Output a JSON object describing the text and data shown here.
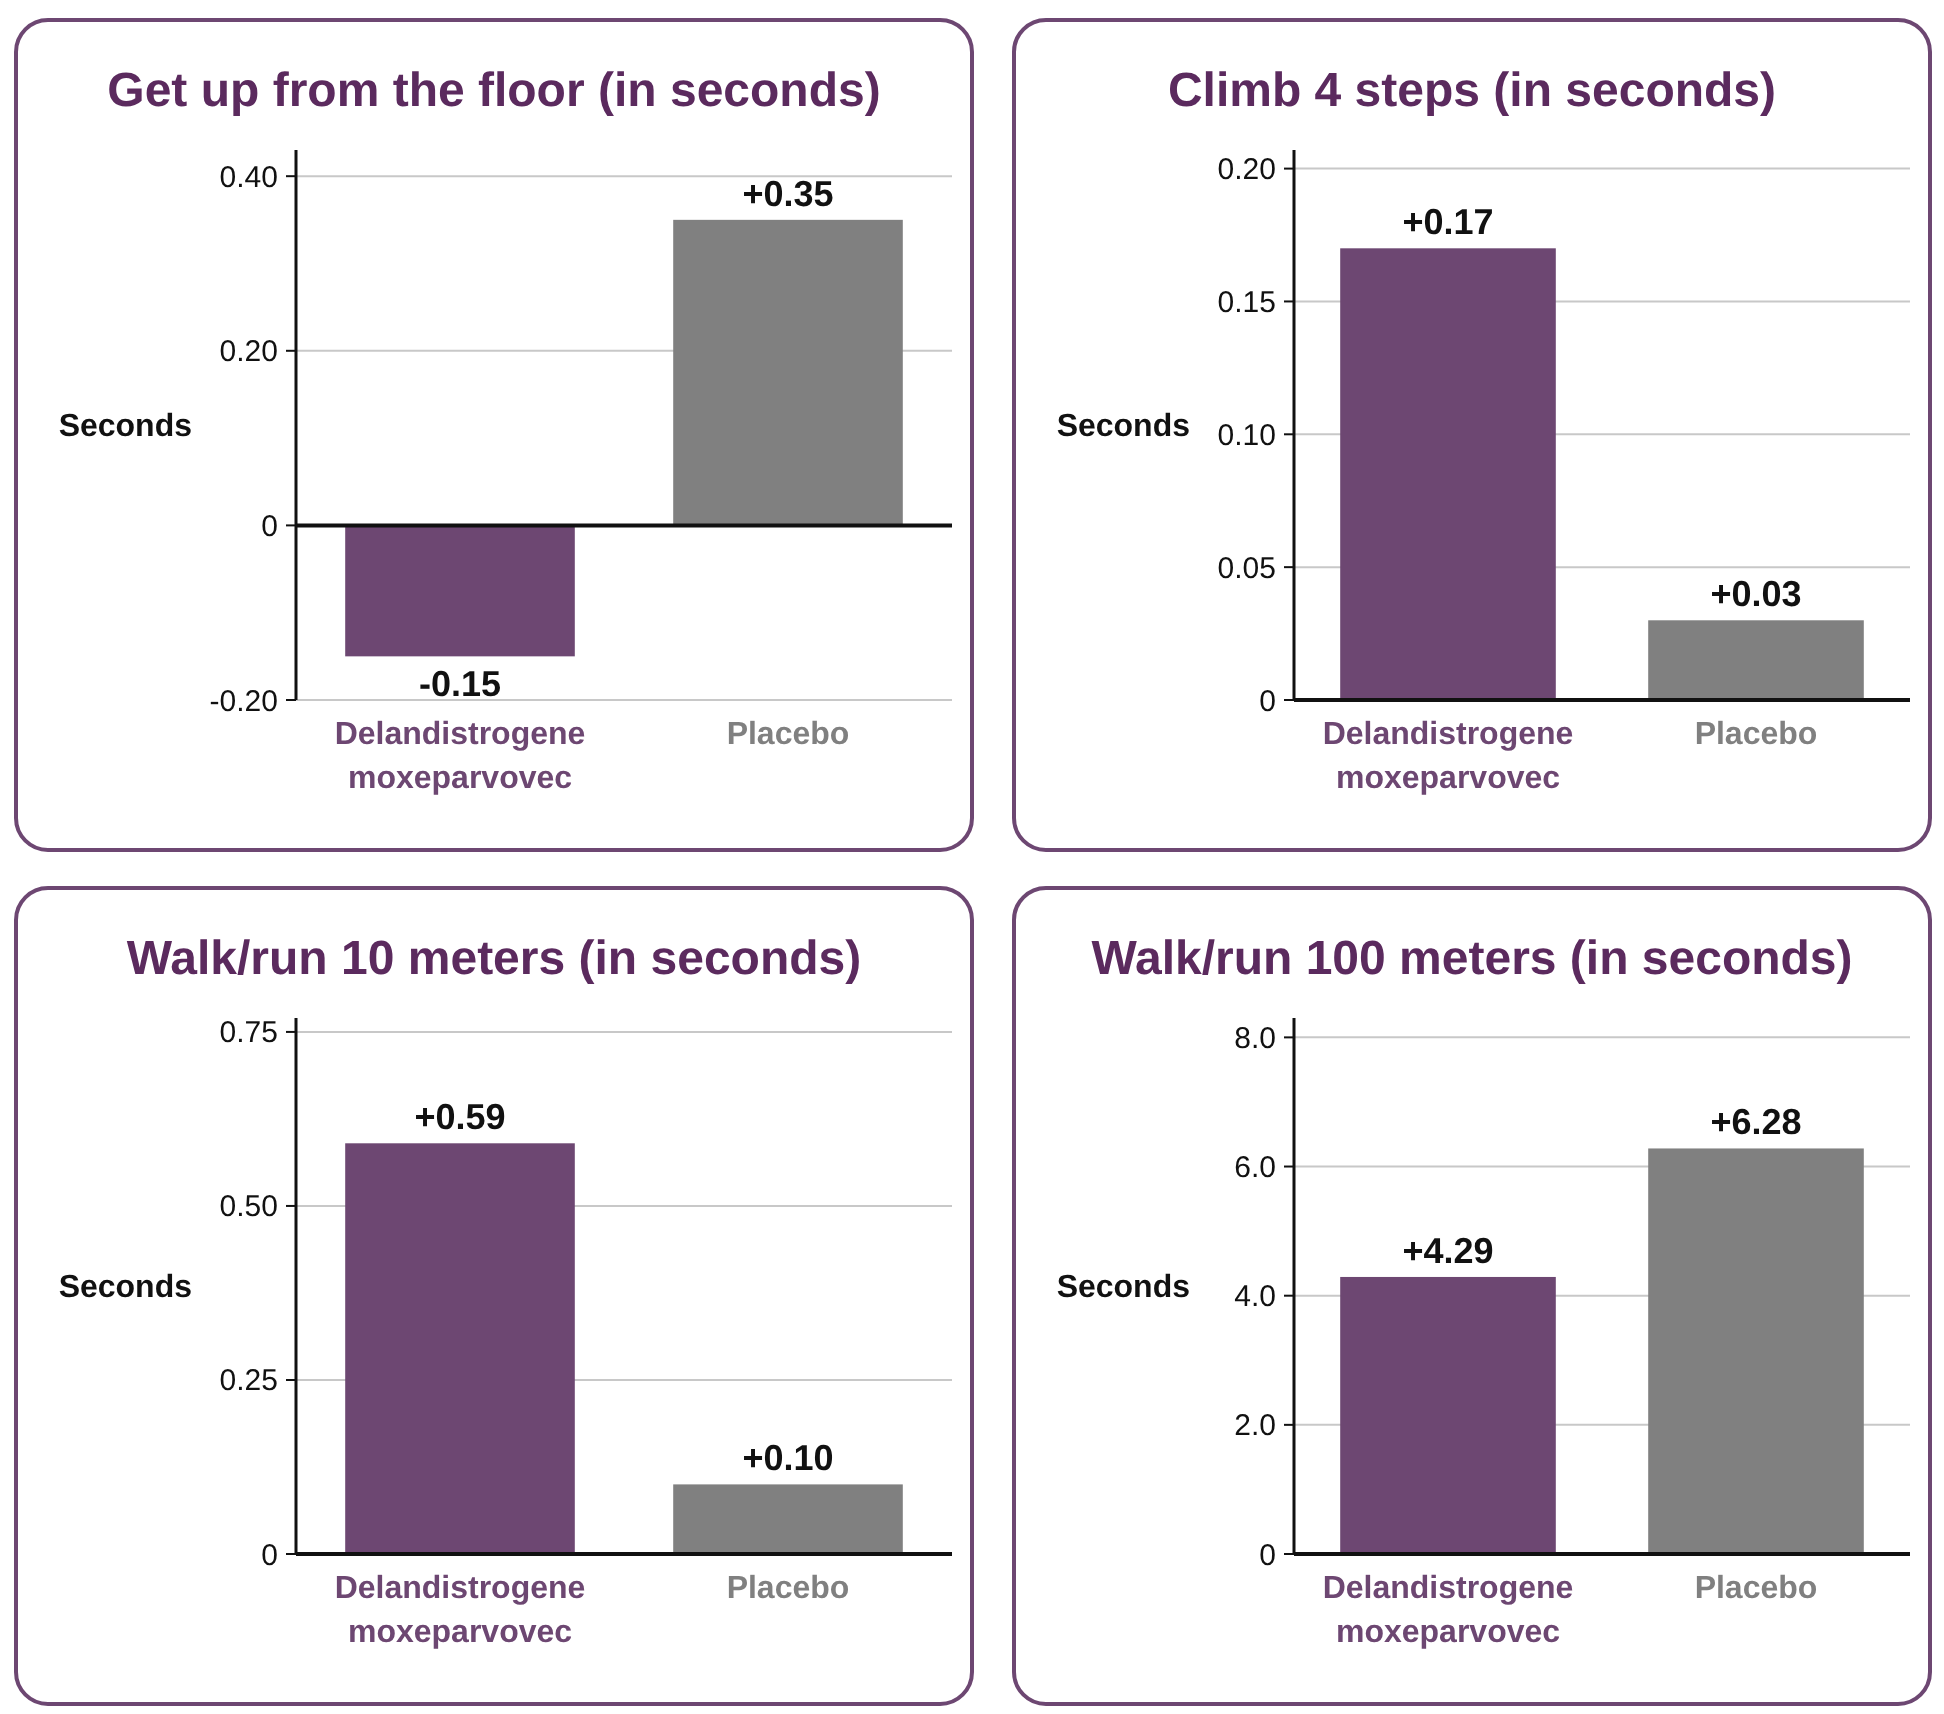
{
  "chart_data": [
    {
      "type": "bar",
      "title": "Get up from the floor (in seconds)",
      "ylabel": "Seconds",
      "categories": [
        "Delandistrogene moxeparvovec",
        "Placebo"
      ],
      "values": [
        -0.15,
        0.35
      ],
      "colors": [
        "#6d4772",
        "#808080"
      ],
      "value_labels": [
        "-0.15",
        "+0.35"
      ],
      "ylim": [
        -0.2,
        0.43
      ],
      "yticks": [
        {
          "value": -0.2,
          "label": "-0.20"
        },
        0,
        {
          "value": 0.2,
          "label": "0.20"
        },
        {
          "value": 0.4,
          "label": "0.40"
        }
      ],
      "grid": "y"
    },
    {
      "type": "bar",
      "title": "Climb 4 steps (in seconds)",
      "ylabel": "Seconds",
      "categories": [
        "Delandistrogene moxeparvovec",
        "Placebo"
      ],
      "values": [
        0.17,
        0.03
      ],
      "colors": [
        "#6d4772",
        "#808080"
      ],
      "value_labels": [
        "+0.17",
        "+0.03"
      ],
      "ylim": [
        0,
        0.207
      ],
      "yticks": [
        0,
        0.05,
        {
          "value": 0.1,
          "label": "0.10"
        },
        0.15,
        {
          "value": 0.2,
          "label": "0.20"
        }
      ],
      "grid": "y"
    },
    {
      "type": "bar",
      "title": "Walk/run 10 meters (in seconds)",
      "ylabel": "Seconds",
      "categories": [
        "Delandistrogene moxeparvovec",
        "Placebo"
      ],
      "values": [
        0.59,
        0.1
      ],
      "colors": [
        "#6d4772",
        "#808080"
      ],
      "value_labels": [
        "+0.59",
        "+0.10"
      ],
      "ylim": [
        0,
        0.77
      ],
      "yticks": [
        0,
        0.25,
        {
          "value": 0.5,
          "label": "0.50"
        },
        0.75
      ],
      "grid": "y"
    },
    {
      "type": "bar",
      "title": "Walk/run 100 meters (in seconds)",
      "ylabel": "Seconds",
      "categories": [
        "Delandistrogene moxeparvovec",
        "Placebo"
      ],
      "values": [
        4.29,
        6.28
      ],
      "colors": [
        "#6d4772",
        "#808080"
      ],
      "value_labels": [
        "+4.29",
        "+6.28"
      ],
      "ylim": [
        0,
        8.3
      ],
      "yticks": [
        0,
        {
          "value": 2,
          "label": "2.0"
        },
        {
          "value": 4,
          "label": "4.0"
        },
        {
          "value": 6,
          "label": "6.0"
        },
        {
          "value": 8,
          "label": "8.0"
        }
      ],
      "grid": "y"
    }
  ]
}
